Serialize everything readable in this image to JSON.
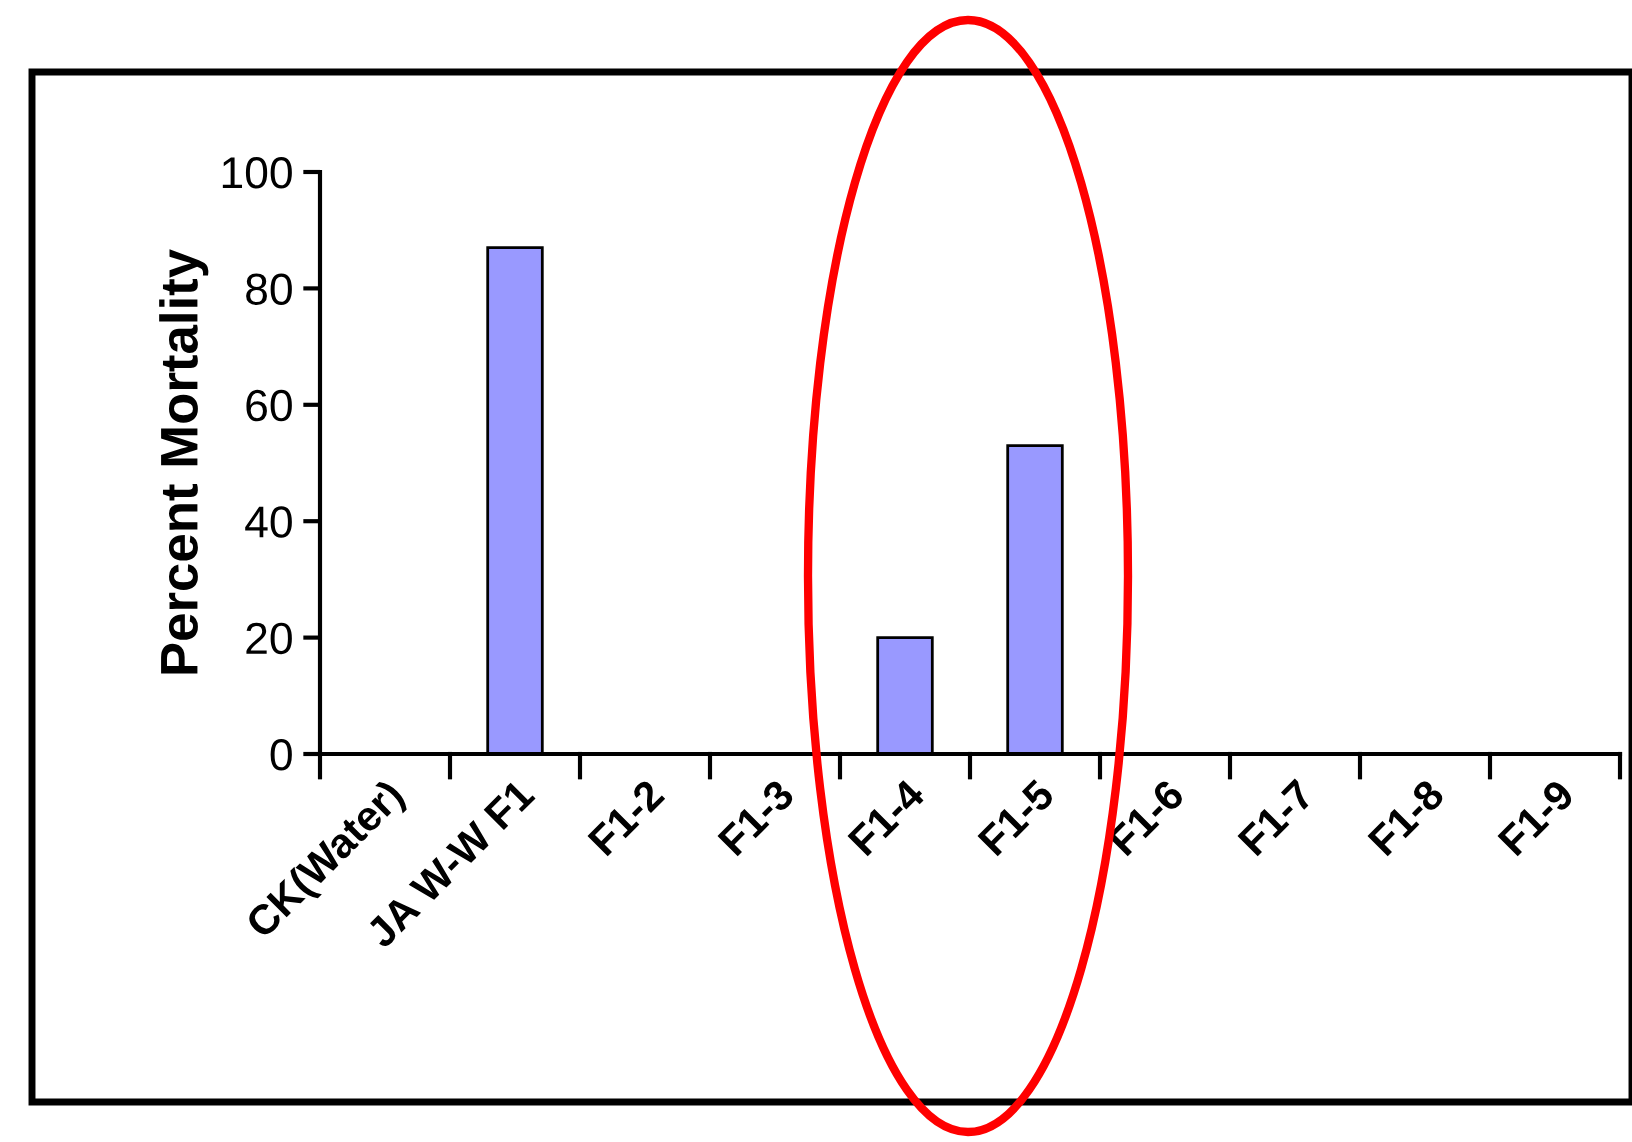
{
  "chart_data": {
    "type": "bar",
    "ylabel": "Percent Mortality",
    "categories": [
      "CK(Water)",
      "JA W-W F1",
      "F1-2",
      "F1-3",
      "F1-4",
      "F1-5",
      "F1-6",
      "F1-7",
      "F1-8",
      "F1-9"
    ],
    "values": [
      0,
      87,
      0,
      0,
      20,
      53,
      0,
      0,
      0,
      0
    ],
    "color": "#9999ff",
    "ylim": [
      0,
      100
    ],
    "yticks": [
      0,
      20,
      40,
      60,
      80,
      100
    ],
    "grid": false,
    "legend": false
  }
}
